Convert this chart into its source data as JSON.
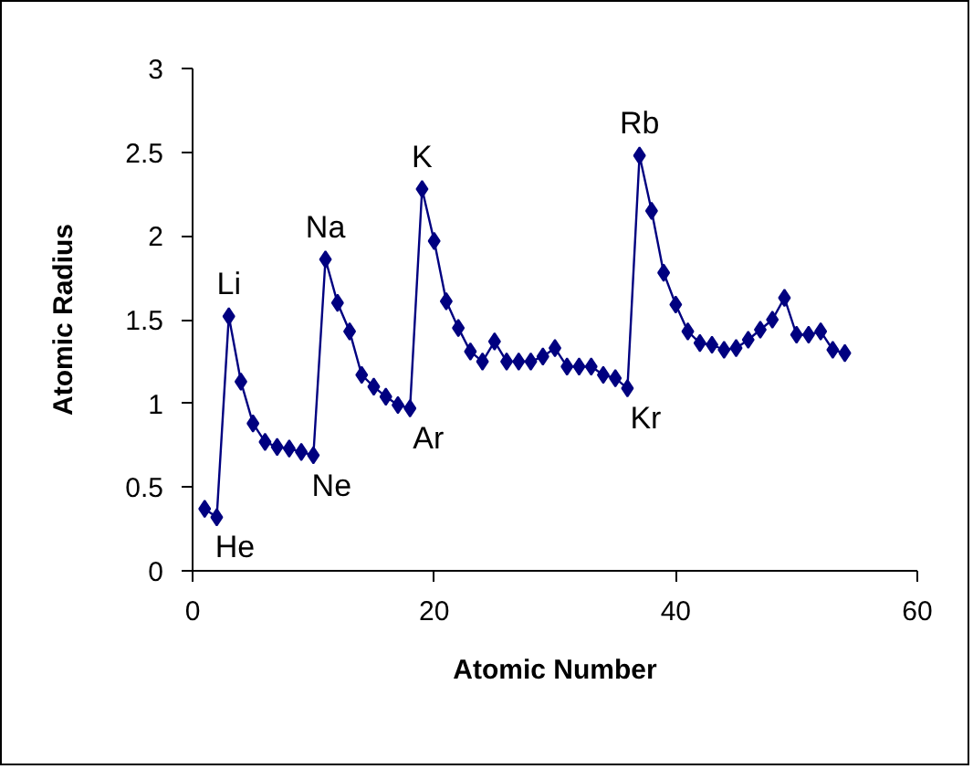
{
  "chart_data": {
    "type": "line",
    "xlabel": "Atomic Number",
    "ylabel": "Atomic Radius",
    "x": [
      1,
      2,
      3,
      4,
      5,
      6,
      7,
      8,
      9,
      10,
      11,
      12,
      13,
      14,
      15,
      16,
      17,
      18,
      19,
      20,
      21,
      22,
      23,
      24,
      25,
      26,
      27,
      28,
      29,
      30,
      31,
      32,
      33,
      34,
      35,
      36,
      37,
      38,
      39,
      40,
      41,
      42,
      43,
      44,
      45,
      46,
      47,
      48,
      49,
      50,
      51,
      52,
      53,
      54
    ],
    "series": [
      {
        "color": "#000080",
        "values": [
          0.37,
          0.32,
          1.52,
          1.13,
          0.88,
          0.77,
          0.74,
          0.73,
          0.71,
          0.69,
          1.86,
          1.6,
          1.43,
          1.17,
          1.1,
          1.04,
          0.99,
          0.97,
          2.28,
          1.97,
          1.61,
          1.45,
          1.31,
          1.25,
          1.37,
          1.25,
          1.25,
          1.25,
          1.28,
          1.33,
          1.22,
          1.22,
          1.22,
          1.17,
          1.15,
          1.09,
          2.48,
          2.15,
          1.78,
          1.59,
          1.43,
          1.36,
          1.35,
          1.32,
          1.33,
          1.38,
          1.44,
          1.5,
          1.63,
          1.41,
          1.41,
          1.43,
          1.32,
          1.3
        ]
      }
    ],
    "xlim": [
      0,
      60
    ],
    "xticks": [
      0,
      20,
      40,
      60
    ],
    "ylim": [
      0,
      3
    ],
    "yticks": [
      0,
      0.5,
      1,
      1.5,
      2,
      2.5,
      3
    ],
    "marker": "diamond",
    "line_style": "solid",
    "annotations": [
      {
        "text": "He",
        "x": 2,
        "y": 0.32
      },
      {
        "text": "Li",
        "x": 3,
        "y": 1.52
      },
      {
        "text": "Ne",
        "x": 10,
        "y": 0.69
      },
      {
        "text": "Na",
        "x": 11,
        "y": 1.86
      },
      {
        "text": "Ar",
        "x": 18,
        "y": 0.97
      },
      {
        "text": "K",
        "x": 19,
        "y": 2.28
      },
      {
        "text": "Kr",
        "x": 36,
        "y": 1.09
      },
      {
        "text": "Rb",
        "x": 37,
        "y": 2.48
      }
    ]
  }
}
